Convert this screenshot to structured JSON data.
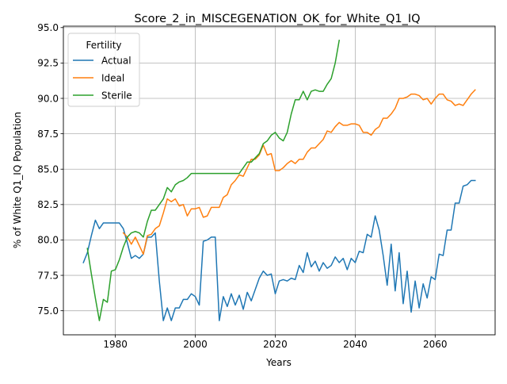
{
  "chart_data": {
    "type": "line",
    "title": "Score_2_in_MISCEGENATION_OK_for_White_Q1_IQ",
    "xlabel": "Years",
    "ylabel": "% of White Q1_IQ Population",
    "xlim": [
      1967,
      2075
    ],
    "ylim": [
      73.3,
      95.1
    ],
    "x_ticks": [
      1980,
      2000,
      2020,
      2040,
      2060
    ],
    "x_tick_labels": [
      "1980",
      "2000",
      "2020",
      "2040",
      "2060"
    ],
    "y_ticks": [
      75.0,
      77.5,
      80.0,
      82.5,
      85.0,
      87.5,
      90.0,
      92.5,
      95.0
    ],
    "y_tick_labels": [
      "75.0",
      "77.5",
      "80.0",
      "82.5",
      "85.0",
      "87.5",
      "90.0",
      "92.5",
      "95.0"
    ],
    "grid": true,
    "legend": {
      "title": "Fertility",
      "position": "upper left"
    },
    "series": [
      {
        "name": "Actual",
        "color": "#1f77b4",
        "x": [
          1972,
          1973,
          1974,
          1975,
          1976,
          1977,
          1978,
          1979,
          1980,
          1981,
          1982,
          1983,
          1984,
          1985,
          1986,
          1987,
          1988,
          1989,
          1990,
          1991,
          1992,
          1993,
          1994,
          1995,
          1996,
          1997,
          1998,
          1999,
          2000,
          2001,
          2002,
          2003,
          2004,
          2005,
          2006,
          2007,
          2008,
          2009,
          2010,
          2011,
          2012,
          2013,
          2014,
          2015,
          2016,
          2017,
          2018,
          2019,
          2020,
          2021,
          2022,
          2023,
          2024,
          2025,
          2026,
          2027,
          2028,
          2029,
          2030,
          2031,
          2032,
          2033,
          2034,
          2035,
          2036,
          2037,
          2038,
          2039,
          2040,
          2041,
          2042,
          2043,
          2044,
          2045,
          2046,
          2047,
          2048,
          2049,
          2050,
          2051,
          2052,
          2053,
          2054,
          2055,
          2056,
          2057,
          2058,
          2059,
          2060,
          2061,
          2062,
          2063,
          2064,
          2065,
          2066,
          2067,
          2068,
          2069,
          2070
        ],
        "values": [
          78.4,
          79.1,
          80.3,
          81.4,
          80.8,
          81.2,
          81.2,
          81.2,
          81.2,
          81.2,
          80.8,
          79.8,
          78.7,
          78.9,
          78.7,
          79.0,
          80.2,
          80.2,
          80.5,
          77.1,
          74.3,
          75.2,
          74.3,
          75.2,
          75.2,
          75.8,
          75.8,
          76.2,
          76.0,
          75.4,
          79.9,
          80.0,
          80.2,
          80.2,
          74.3,
          76.0,
          75.3,
          76.2,
          75.4,
          76.1,
          75.1,
          76.3,
          75.7,
          76.5,
          77.3,
          77.8,
          77.5,
          77.6,
          76.2,
          77.1,
          77.2,
          77.1,
          77.3,
          77.2,
          78.2,
          77.7,
          79.1,
          78.1,
          78.5,
          77.8,
          78.4,
          78.0,
          78.2,
          78.8,
          78.4,
          78.7,
          77.9,
          78.7,
          78.4,
          79.2,
          79.1,
          80.4,
          80.2,
          81.7,
          80.7,
          78.9,
          76.8,
          79.7,
          76.4,
          79.1,
          75.5,
          77.8,
          74.9,
          77.1,
          75.2,
          76.9,
          75.9,
          77.4,
          77.2,
          79.0,
          78.9,
          80.7,
          80.7,
          82.6,
          82.6,
          83.8,
          83.9,
          84.2,
          84.2
        ]
      },
      {
        "name": "Ideal",
        "color": "#ff7f0e",
        "x": [
          1982,
          1983,
          1984,
          1985,
          1986,
          1987,
          1988,
          1989,
          1990,
          1991,
          1992,
          1993,
          1994,
          1995,
          1996,
          1997,
          1998,
          1999,
          2000,
          2001,
          2002,
          2003,
          2004,
          2005,
          2006,
          2007,
          2008,
          2009,
          2010,
          2011,
          2012,
          2013,
          2014,
          2015,
          2016,
          2017,
          2018,
          2019,
          2020,
          2021,
          2022,
          2023,
          2024,
          2025,
          2026,
          2027,
          2028,
          2029,
          2030,
          2031,
          2032,
          2033,
          2034,
          2035,
          2036,
          2037,
          2038,
          2039,
          2040,
          2041,
          2042,
          2043,
          2044,
          2045,
          2046,
          2047,
          2048,
          2049,
          2050,
          2051,
          2052,
          2053,
          2054,
          2055,
          2056,
          2057,
          2058,
          2059,
          2060,
          2061,
          2062,
          2063,
          2064,
          2065,
          2066,
          2067,
          2068,
          2069,
          2070
        ],
        "values": [
          80.5,
          80.2,
          79.7,
          80.2,
          79.6,
          79.0,
          80.3,
          80.4,
          80.8,
          81.0,
          81.9,
          82.9,
          82.7,
          82.9,
          82.4,
          82.5,
          81.7,
          82.2,
          82.2,
          82.3,
          81.6,
          81.7,
          82.3,
          82.3,
          82.3,
          83.0,
          83.2,
          83.9,
          84.2,
          84.6,
          84.5,
          85.1,
          85.7,
          85.7,
          86.0,
          86.7,
          86.0,
          86.1,
          84.9,
          84.9,
          85.1,
          85.4,
          85.6,
          85.4,
          85.7,
          85.7,
          86.2,
          86.5,
          86.5,
          86.8,
          87.1,
          87.7,
          87.6,
          88.0,
          88.3,
          88.1,
          88.1,
          88.2,
          88.2,
          88.1,
          87.6,
          87.6,
          87.4,
          87.8,
          88.0,
          88.6,
          88.6,
          88.9,
          89.3,
          90.0,
          90.0,
          90.1,
          90.3,
          90.3,
          90.2,
          89.9,
          90.0,
          89.6,
          90.0,
          90.3,
          90.3,
          89.9,
          89.8,
          89.5,
          89.6,
          89.5,
          89.9,
          90.3,
          90.6
        ]
      },
      {
        "name": "Sterile",
        "color": "#2ca02c",
        "x": [
          1973,
          1974,
          1975,
          1976,
          1977,
          1978,
          1979,
          1980,
          1981,
          1982,
          1983,
          1984,
          1985,
          1986,
          1987,
          1988,
          1989,
          1990,
          1991,
          1992,
          1993,
          1994,
          1995,
          1996,
          1997,
          1998,
          1999,
          2000,
          2001,
          2002,
          2003,
          2004,
          2005,
          2006,
          2007,
          2008,
          2009,
          2010,
          2011,
          2012,
          2013,
          2014,
          2015,
          2016,
          2017,
          2018,
          2019,
          2020,
          2021,
          2022,
          2023,
          2024,
          2025,
          2026,
          2027,
          2028,
          2029,
          2030,
          2031,
          2032,
          2033,
          2034,
          2035,
          2036
        ],
        "values": [
          79.4,
          77.6,
          75.9,
          74.3,
          75.8,
          75.6,
          77.8,
          77.9,
          78.6,
          79.5,
          80.2,
          80.5,
          80.6,
          80.5,
          80.2,
          81.3,
          82.1,
          82.1,
          82.5,
          82.9,
          83.7,
          83.4,
          83.9,
          84.1,
          84.2,
          84.4,
          84.7,
          84.7,
          84.7,
          84.7,
          84.7,
          84.7,
          84.7,
          84.7,
          84.7,
          84.7,
          84.7,
          84.7,
          84.7,
          85.1,
          85.5,
          85.5,
          85.8,
          86.1,
          86.8,
          87.0,
          87.4,
          87.6,
          87.2,
          87.0,
          87.6,
          88.9,
          89.9,
          89.9,
          90.5,
          89.9,
          90.5,
          90.6,
          90.5,
          90.5,
          91.0,
          91.4,
          92.5,
          94.1
        ]
      }
    ]
  }
}
